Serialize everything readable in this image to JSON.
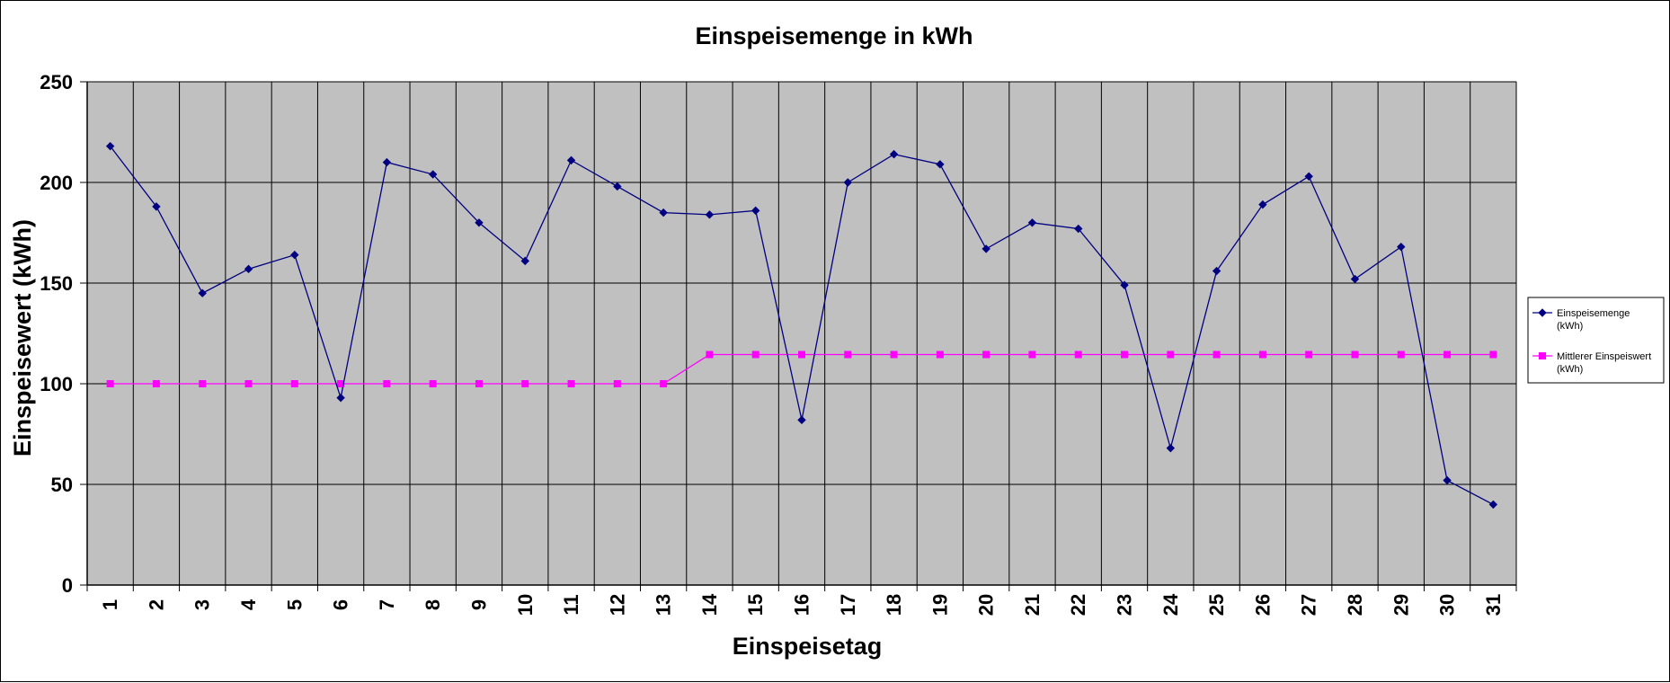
{
  "chart_data": {
    "type": "line",
    "title": "Einspeisemenge in kWh",
    "xlabel": "Einspeisetag",
    "ylabel": "Einspeisewert  (kWh)",
    "ylim": [
      0,
      250
    ],
    "yticks": [
      0,
      50,
      100,
      150,
      200,
      250
    ],
    "categories": [
      "1",
      "2",
      "3",
      "4",
      "5",
      "6",
      "7",
      "8",
      "9",
      "10",
      "11",
      "12",
      "13",
      "14",
      "15",
      "16",
      "17",
      "18",
      "19",
      "20",
      "21",
      "22",
      "23",
      "24",
      "25",
      "26",
      "27",
      "28",
      "29",
      "30",
      "31"
    ],
    "grid": true,
    "legend_position": "right",
    "plot_background": "#c0c0c0",
    "series": [
      {
        "name": "Einspeisemenge (kWh)",
        "legend_lines": [
          "Einspeisemenge",
          "(kWh)"
        ],
        "color": "#000080",
        "marker": "diamond",
        "values": [
          218,
          188,
          145,
          157,
          164,
          93,
          210,
          204,
          180,
          161,
          211,
          198,
          185,
          184,
          186,
          82,
          200,
          214,
          209,
          167,
          180,
          177,
          149,
          68,
          156,
          189,
          203,
          152,
          168,
          52,
          40
        ]
      },
      {
        "name": "Mittlerer Einspeiswert (kWh)",
        "legend_lines": [
          "Mittlerer Einspeiswert",
          "(kWh)"
        ],
        "color": "#ff00ff",
        "marker": "square",
        "values": [
          100,
          100,
          100,
          100,
          100,
          100,
          100,
          100,
          100,
          100,
          100,
          100,
          100,
          114.5,
          114.5,
          114.5,
          114.5,
          114.5,
          114.5,
          114.5,
          114.5,
          114.5,
          114.5,
          114.5,
          114.5,
          114.5,
          114.5,
          114.5,
          114.5,
          114.5,
          114.5
        ]
      }
    ]
  }
}
